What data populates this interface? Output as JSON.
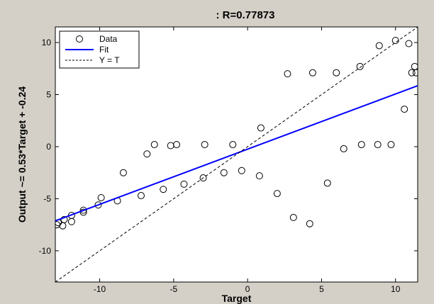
{
  "chart_data": {
    "type": "scatter",
    "title": ": R=0.77873",
    "xlabel": "Target",
    "ylabel": "Output ~= 0.53*Target + -0.24",
    "xlim": [
      -13,
      11.5
    ],
    "ylim": [
      -13,
      11.5
    ],
    "xticks": [
      -10,
      -5,
      0,
      5,
      10
    ],
    "yticks": [
      -10,
      -5,
      0,
      5,
      10
    ],
    "xtick_labels": [
      "-10",
      "-5",
      "0",
      "5",
      "10"
    ],
    "ytick_labels": [
      "-10",
      "-5",
      "0",
      "5",
      "10"
    ],
    "grid": false,
    "legend_position": "top-left",
    "series": [
      {
        "name": "Data",
        "style": "markers",
        "marker": "circle",
        "color": "#000000",
        "points": [
          [
            -12.9,
            -7.5
          ],
          [
            -12.8,
            -7.3
          ],
          [
            -12.5,
            -7.6
          ],
          [
            -12.4,
            -7.0
          ],
          [
            -11.9,
            -7.2
          ],
          [
            -11.9,
            -6.6
          ],
          [
            -11.1,
            -6.3
          ],
          [
            -11.1,
            -6.1
          ],
          [
            -10.1,
            -5.6
          ],
          [
            -9.9,
            -4.9
          ],
          [
            -8.8,
            -5.2
          ],
          [
            -8.4,
            -2.5
          ],
          [
            -7.2,
            -4.7
          ],
          [
            -6.8,
            -0.7
          ],
          [
            -6.3,
            0.2
          ],
          [
            -5.7,
            -4.1
          ],
          [
            -5.2,
            0.1
          ],
          [
            -4.8,
            0.2
          ],
          [
            -4.3,
            -3.6
          ],
          [
            -3.0,
            -3.0
          ],
          [
            -2.9,
            0.2
          ],
          [
            -1.6,
            -2.5
          ],
          [
            -1.0,
            0.2
          ],
          [
            -0.4,
            -2.3
          ],
          [
            0.8,
            -2.8
          ],
          [
            0.9,
            1.8
          ],
          [
            2.0,
            -4.5
          ],
          [
            2.7,
            7.0
          ],
          [
            3.1,
            -6.8
          ],
          [
            4.2,
            -7.4
          ],
          [
            4.4,
            7.1
          ],
          [
            5.4,
            -3.5
          ],
          [
            6.0,
            7.1
          ],
          [
            6.5,
            -0.2
          ],
          [
            7.6,
            7.7
          ],
          [
            7.7,
            0.2
          ],
          [
            8.8,
            0.2
          ],
          [
            8.9,
            9.7
          ],
          [
            9.7,
            0.2
          ],
          [
            10.0,
            10.2
          ],
          [
            10.6,
            3.6
          ],
          [
            10.9,
            9.9
          ],
          [
            11.1,
            7.1
          ],
          [
            11.3,
            7.7
          ],
          [
            11.4,
            7.1
          ]
        ]
      },
      {
        "name": "Fit",
        "style": "line",
        "color": "#0000ff",
        "slope": 0.53,
        "intercept": -0.24
      },
      {
        "name": "Y = T",
        "style": "dashed",
        "color": "#000000",
        "slope": 1,
        "intercept": 0
      }
    ]
  }
}
